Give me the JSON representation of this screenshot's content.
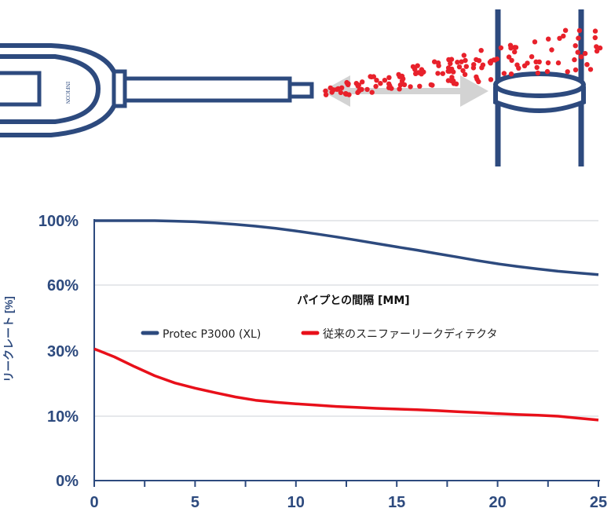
{
  "illustration": {
    "logo_text": "INFICON",
    "colors": {
      "device": "#2d4a7e",
      "gas_dots": "#e8212b",
      "arrow": "#d3d3d3"
    }
  },
  "chart_data": {
    "type": "line",
    "title": "パイプとの間隔 [MM]",
    "xlabel": "",
    "ylabel": "リークレート [%]",
    "xlim": [
      0,
      25
    ],
    "x_ticks": [
      0,
      5,
      10,
      15,
      20,
      25
    ],
    "x_tick_labels": [
      "0",
      "5",
      "10",
      "15",
      "20",
      "25"
    ],
    "y_ticks": [
      0,
      10,
      30,
      60,
      100
    ],
    "y_tick_labels": [
      "0%",
      "10%",
      "30%",
      "60%",
      "100%"
    ],
    "grid": true,
    "legend_position": "center",
    "series": [
      {
        "name": "Protec P3000 (XL)",
        "color": "#2d4a7e",
        "x": [
          0,
          1,
          2,
          3,
          4,
          5,
          6,
          7,
          8,
          9,
          10,
          11,
          12,
          13,
          14,
          15,
          16,
          17,
          18,
          19,
          20,
          21,
          22,
          23,
          24,
          25
        ],
        "y": [
          100,
          100,
          100,
          100,
          99.7,
          99.3,
          98.6,
          97.7,
          96.6,
          95.2,
          93.6,
          91.8,
          89.9,
          87.9,
          85.8,
          83.7,
          81.7,
          79.5,
          77.4,
          75.2,
          73.2,
          71.5,
          70,
          68.6,
          67.5,
          66.5
        ]
      },
      {
        "name": "従来のスニファーリークディテクタ",
        "color": "#e8101a",
        "x": [
          0,
          1,
          2,
          3,
          4,
          5,
          6,
          7,
          8,
          9,
          10,
          11,
          12,
          13,
          14,
          15,
          16,
          17,
          18,
          19,
          20,
          21,
          22,
          23,
          24,
          25
        ],
        "y": [
          31,
          28.2,
          25.2,
          22.4,
          20.2,
          18.6,
          17.2,
          15.9,
          14.9,
          14.3,
          13.8,
          13.4,
          13,
          12.7,
          12.4,
          12.2,
          12,
          11.7,
          11.4,
          11.1,
          10.8,
          10.5,
          10.3,
          10,
          9.7,
          9.4
        ]
      }
    ]
  }
}
